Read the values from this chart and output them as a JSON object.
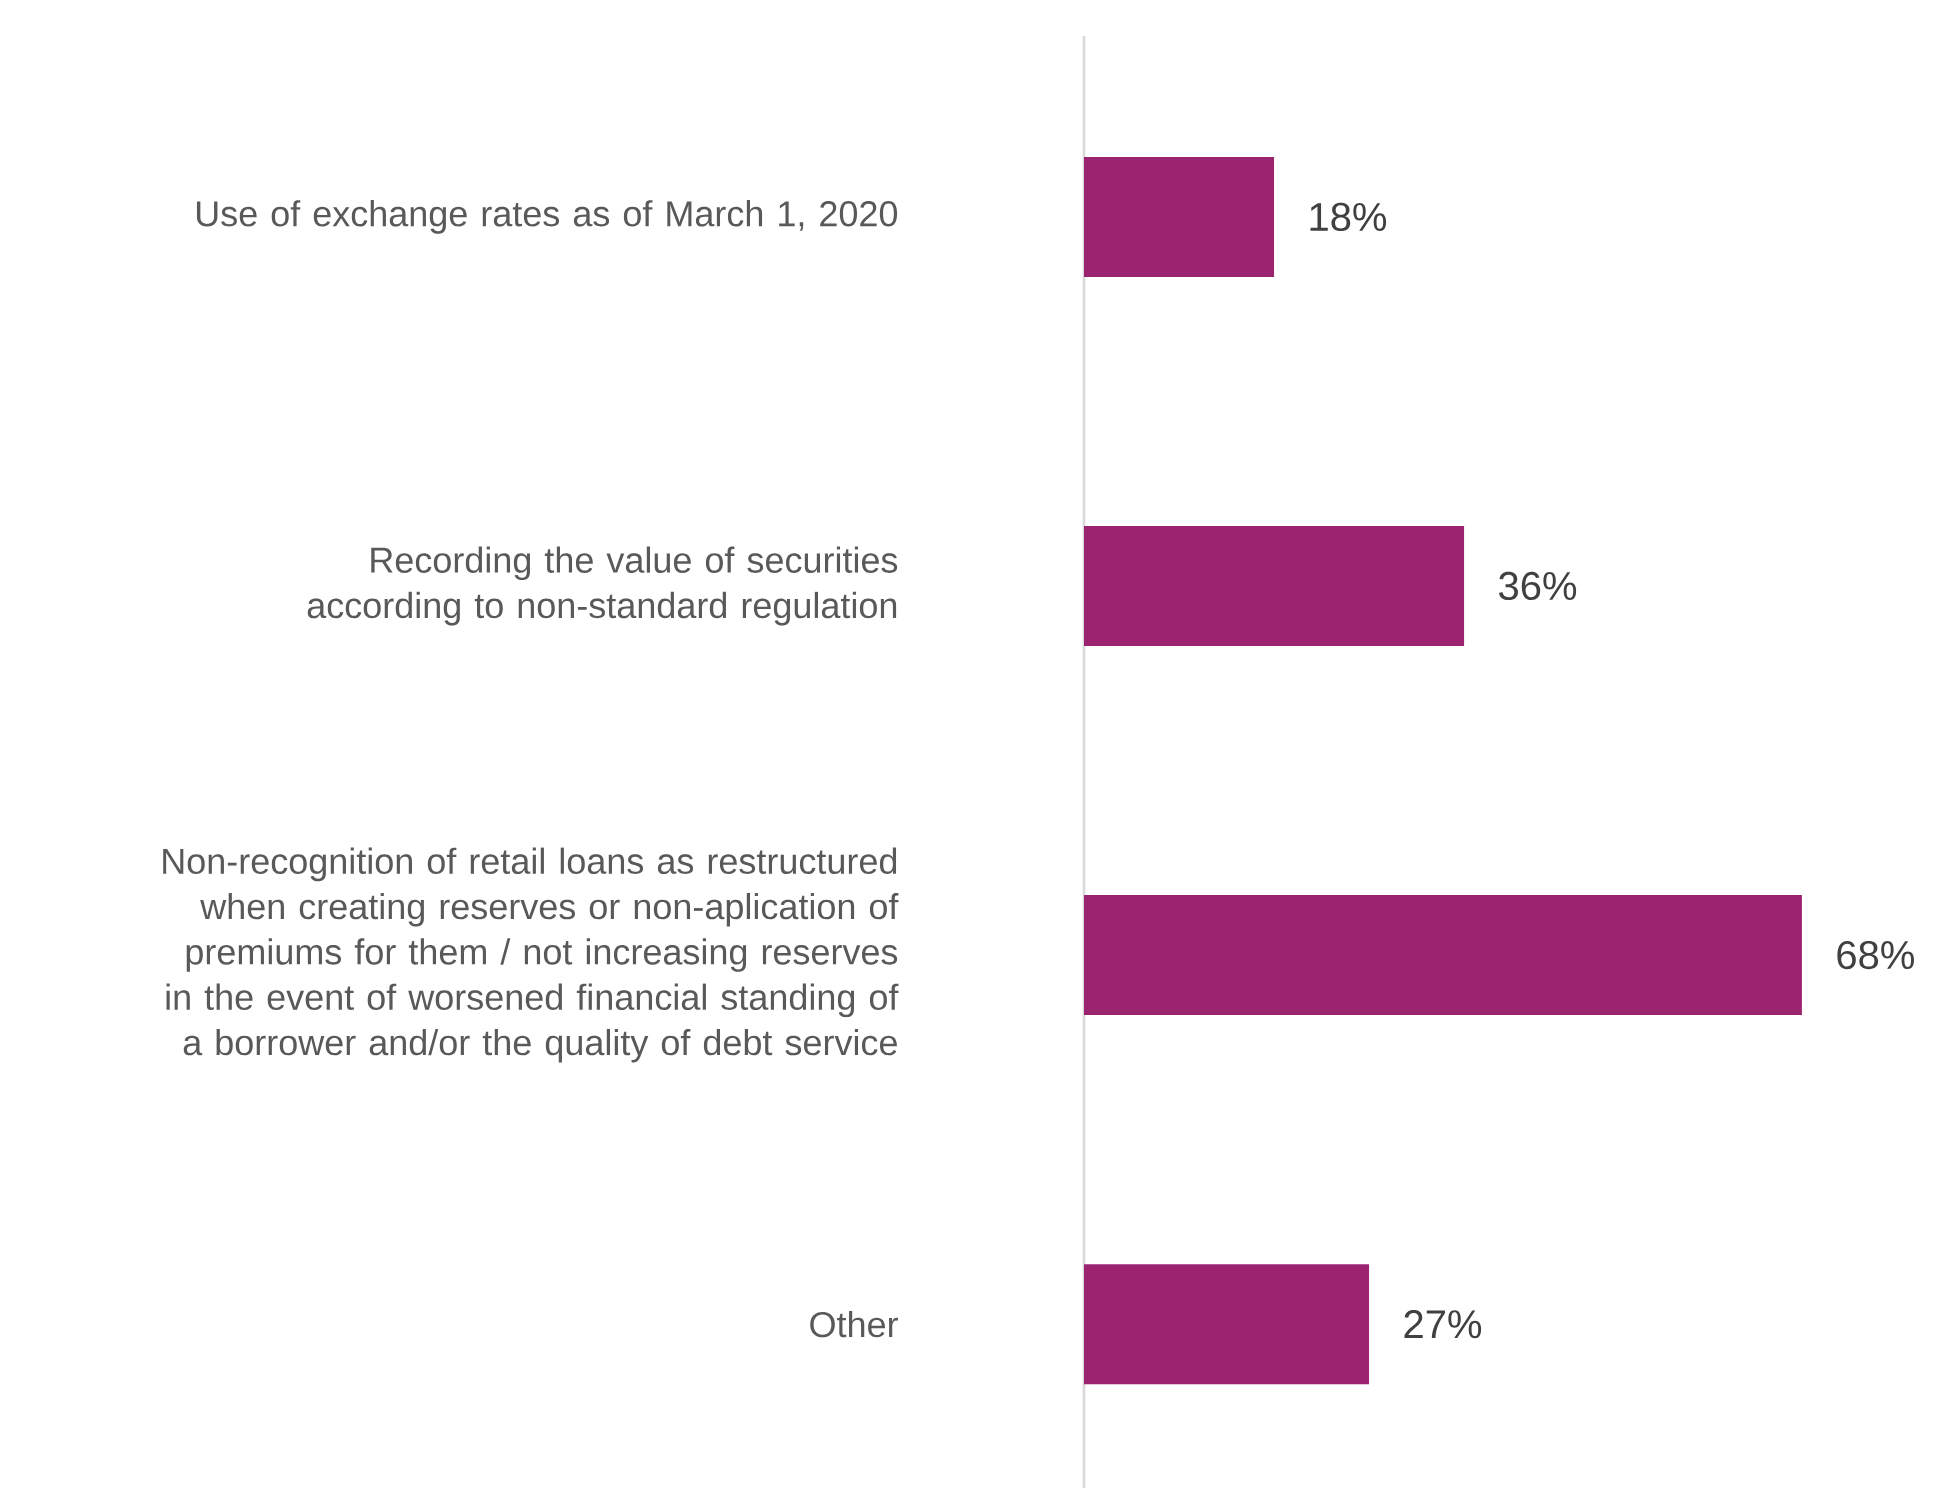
{
  "chart_data": {
    "type": "bar",
    "orientation": "horizontal",
    "categories": [
      "Use of exchange rates as of March 1, 2020",
      "Recording the value of securities according to non-standard regulation",
      "Non-recognition of retail loans as restructured when creating reserves or non-aplication of premiums for them / not increasing reserves in the event of worsened financial standing of a borrower and/or the quality of debt service",
      "Other"
    ],
    "values": [
      18,
      36,
      68,
      27
    ],
    "value_labels": [
      "18%",
      "36%",
      "68%",
      "27%"
    ],
    "color": "#9c2370"
  }
}
